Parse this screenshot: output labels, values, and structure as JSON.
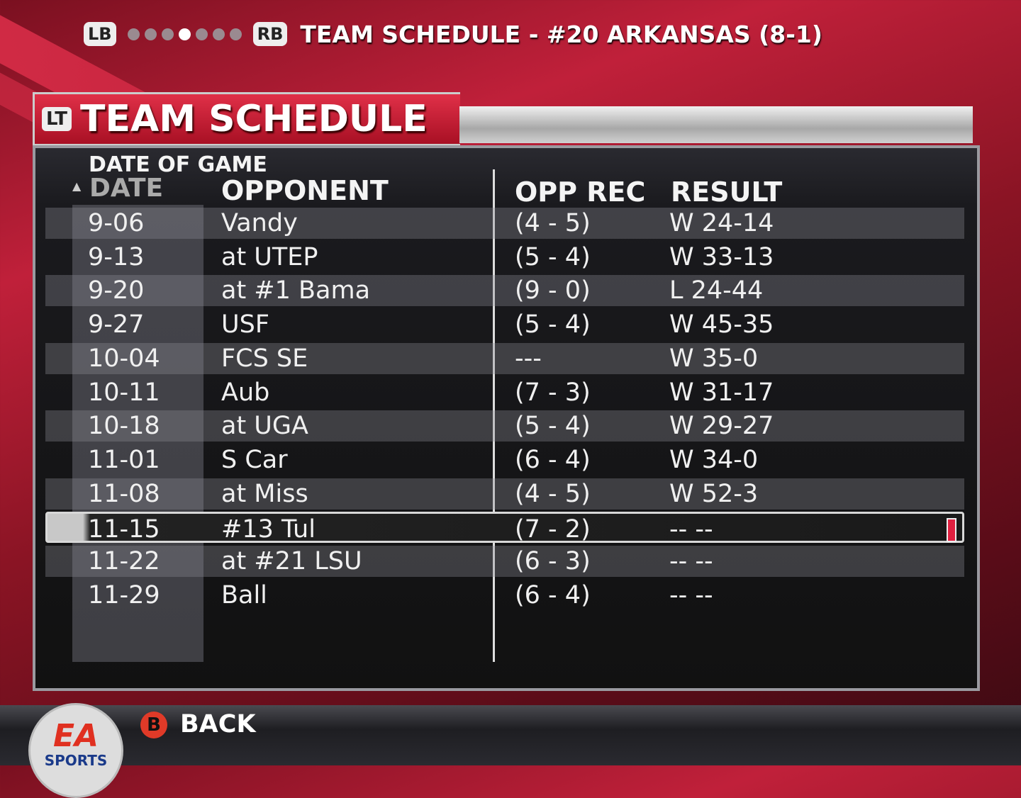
{
  "top_bar": {
    "lb": "LB",
    "rb": "RB",
    "page_count": 7,
    "active_page": 4,
    "title": "TEAM SCHEDULE - #20 ARKANSAS (8-1)"
  },
  "panel": {
    "lt": "LT",
    "title": "TEAM SCHEDULE"
  },
  "table": {
    "sort_label": "DATE OF GAME",
    "sort_icon": "triangle-up-icon",
    "headers": {
      "date": "DATE",
      "opponent": "OPPONENT",
      "opp_rec": "OPP REC",
      "result": "RESULT"
    },
    "selected_index": 9,
    "rows": [
      {
        "date": "9-06",
        "opponent": "Vandy",
        "opp_rec": "(4 - 5)",
        "result": "W 24-14"
      },
      {
        "date": "9-13",
        "opponent": "at UTEP",
        "opp_rec": "(5 - 4)",
        "result": "W 33-13"
      },
      {
        "date": "9-20",
        "opponent": "at #1 Bama",
        "opp_rec": "(9 - 0)",
        "result": "L 24-44"
      },
      {
        "date": "9-27",
        "opponent": "USF",
        "opp_rec": "(5 - 4)",
        "result": "W 45-35"
      },
      {
        "date": "10-04",
        "opponent": "FCS SE",
        "opp_rec": "---",
        "result": "W 35-0"
      },
      {
        "date": "10-11",
        "opponent": "Aub",
        "opp_rec": "(7 - 3)",
        "result": "W 31-17"
      },
      {
        "date": "10-18",
        "opponent": "at UGA",
        "opp_rec": "(5 - 4)",
        "result": "W 29-27"
      },
      {
        "date": "11-01",
        "opponent": "S Car",
        "opp_rec": "(6 - 4)",
        "result": "W 34-0"
      },
      {
        "date": "11-08",
        "opponent": "at Miss",
        "opp_rec": "(4 - 5)",
        "result": "W 52-3"
      },
      {
        "date": "11-15",
        "opponent": "#13 Tul",
        "opp_rec": "(7 - 2)",
        "result": "-- --"
      },
      {
        "date": "11-22",
        "opponent": "at #21 LSU",
        "opp_rec": "(6 - 3)",
        "result": "-- --"
      },
      {
        "date": "11-29",
        "opponent": "Ball",
        "opp_rec": "(6 - 4)",
        "result": "-- --"
      }
    ]
  },
  "footer": {
    "b_button": "B",
    "back_label": "BACK",
    "logo_text": "EA",
    "logo_subtext": "SPORTS"
  },
  "colors": {
    "accent_red": "#e03048",
    "highlight_bar": "#e02040",
    "b_button": "#e03a28"
  }
}
